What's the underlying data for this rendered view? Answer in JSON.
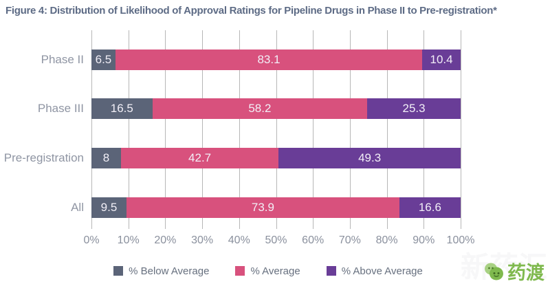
{
  "title": "Figure 4: Distribution of Likelihood of Approval Ratings for Pipeline Drugs in Phase II to Pre-registration*",
  "chart_data": {
    "type": "bar",
    "orientation": "horizontal",
    "stacked": true,
    "categories": [
      "Phase II",
      "Phase III",
      "Pre-registration",
      "All"
    ],
    "series": [
      {
        "name": "% Below Average",
        "color": "#5b6478",
        "values": [
          6.5,
          16.5,
          8,
          9.5
        ]
      },
      {
        "name": "% Average",
        "color": "#d8517d",
        "values": [
          83.1,
          58.2,
          42.7,
          73.9
        ]
      },
      {
        "name": "% Above Average",
        "color": "#693d97",
        "values": [
          10.4,
          25.3,
          49.3,
          16.6
        ]
      }
    ],
    "x_ticks": [
      "0%",
      "10%",
      "20%",
      "30%",
      "40%",
      "50%",
      "60%",
      "70%",
      "80%",
      "90%",
      "100%"
    ],
    "xlim": [
      0,
      100
    ],
    "grid": "vertical",
    "legend_position": "bottom",
    "value_labels": "inside-center"
  },
  "colors": {
    "title": "#5d6b85",
    "category_label": "#8f95a3",
    "tick_label": "#8a909d",
    "gridline": "#b6b6b6",
    "value_label": "#f2eff7",
    "legend_label": "#67707f",
    "brand_green": "#7fb94e"
  },
  "watermark": {
    "background_text": "新药汇",
    "logo_icon": "leaf-mascot-icon",
    "logo_text": "药渡"
  }
}
